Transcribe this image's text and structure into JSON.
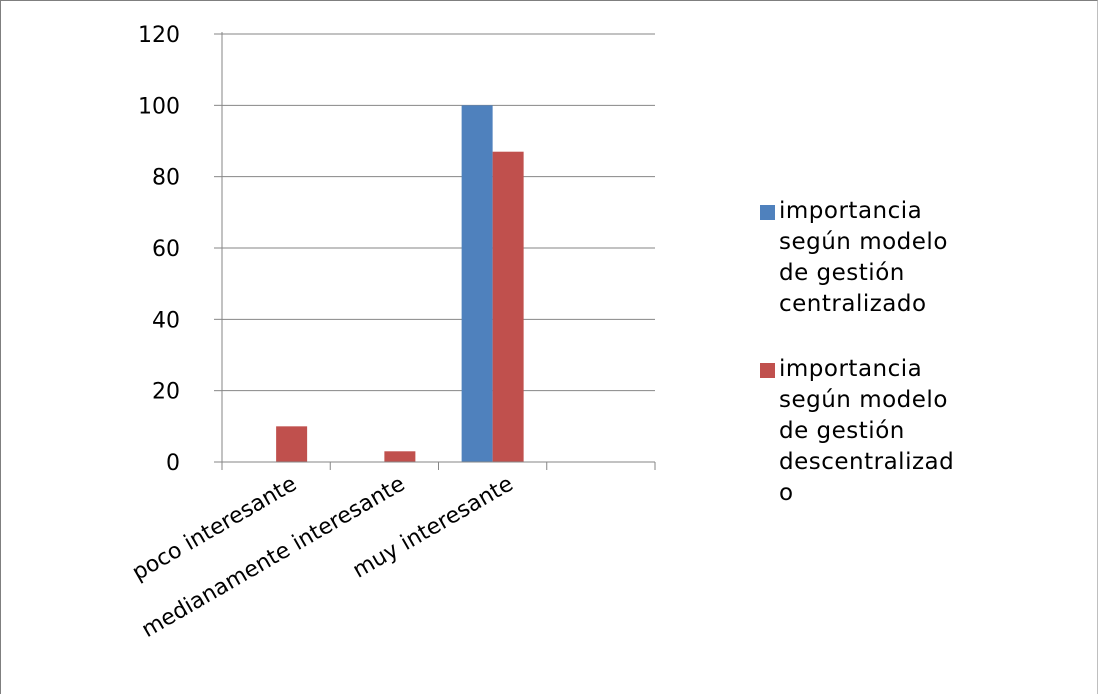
{
  "chart_data": {
    "type": "bar",
    "title": "",
    "xlabel": "",
    "ylabel": "",
    "categories": [
      "poco interesante",
      "medianamente interesante",
      "muy interesante",
      ""
    ],
    "series": [
      {
        "name": "importancia según modelo de gestión centralizado",
        "legend_lines": [
          "importancia",
          "según modelo",
          "de gestión",
          "centralizado"
        ],
        "color": "#4f81bd",
        "values": [
          0,
          0,
          100,
          0
        ]
      },
      {
        "name": "importancia según modelo de gestión descentralizado",
        "legend_lines": [
          "importancia",
          "según modelo",
          "de gestión",
          "descentralizad",
          "o"
        ],
        "color": "#c0504d",
        "values": [
          10,
          3,
          87,
          0
        ]
      }
    ],
    "ylim": [
      0,
      120
    ],
    "yticks": [
      "0",
      "20",
      "40",
      "60",
      "80",
      "100",
      "120"
    ],
    "grid": true,
    "legend": "right"
  }
}
